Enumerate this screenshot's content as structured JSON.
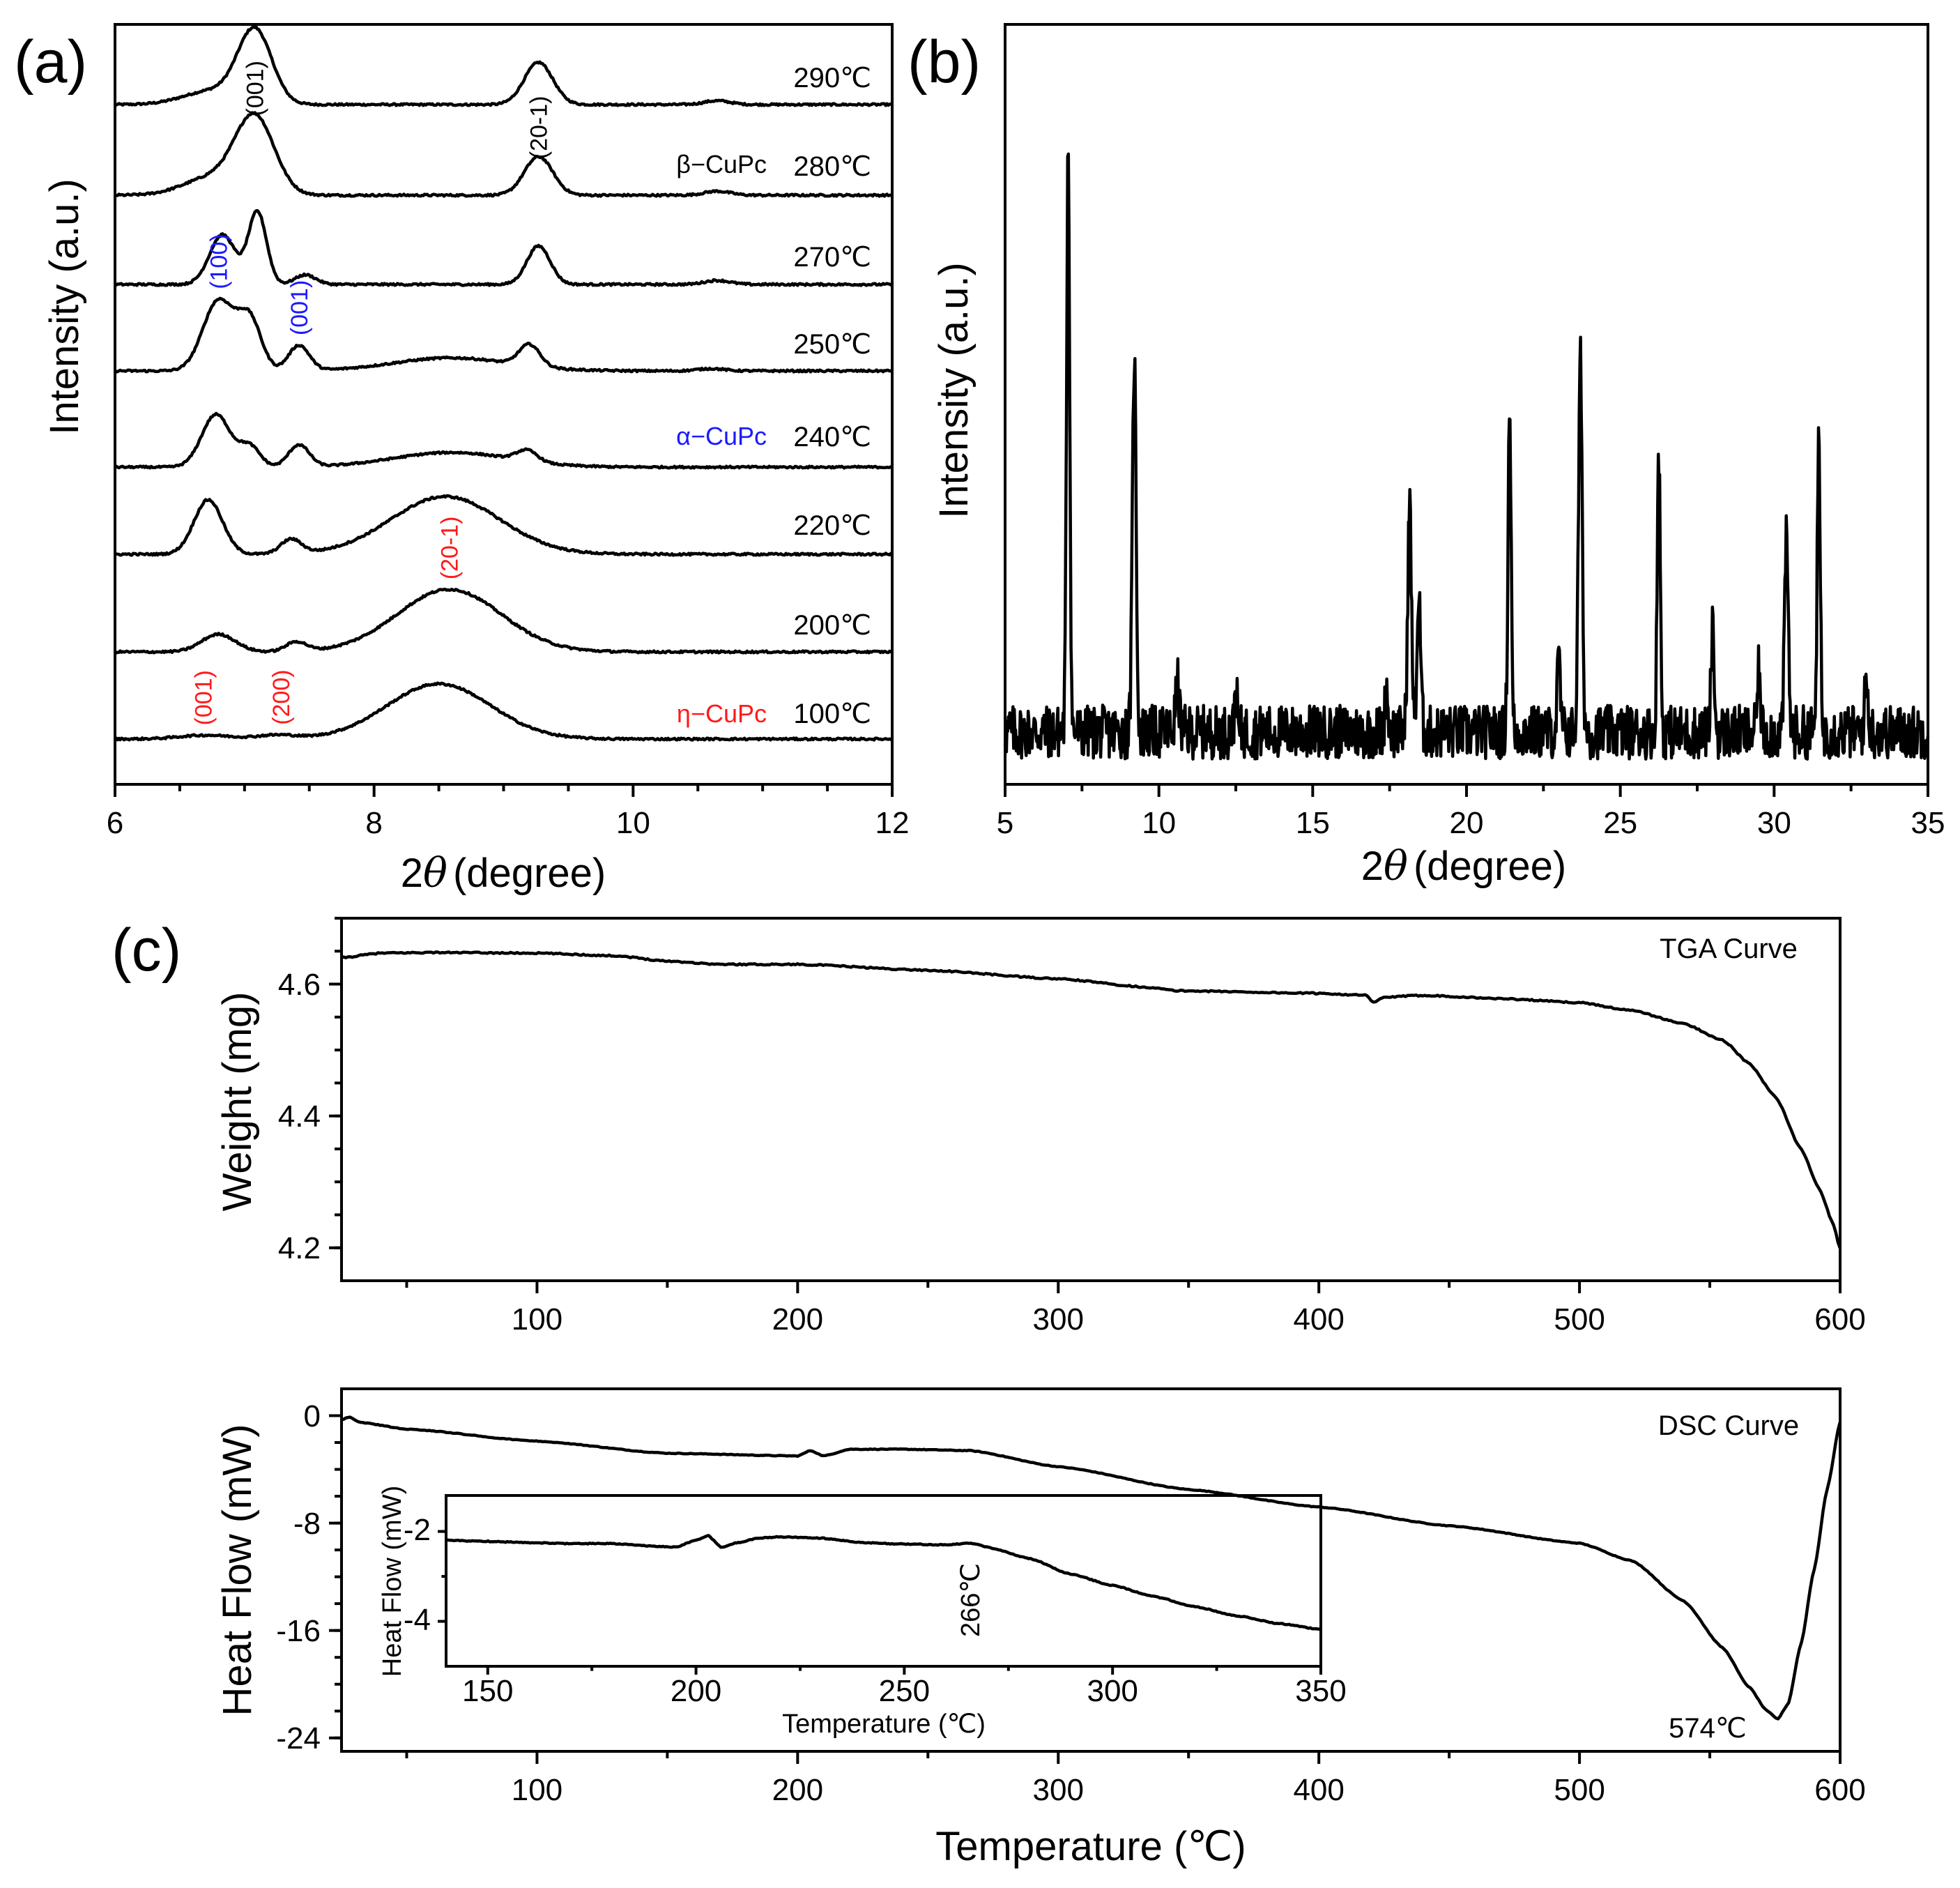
{
  "figure": {
    "panel_labels": [
      "(a)",
      "(b)",
      "(c)"
    ]
  },
  "chart_data": [
    {
      "id": "a",
      "type": "line",
      "title": "",
      "xlabel": "2θ (degree)",
      "xlabel_prefix": "2",
      "xlabel_var": "θ",
      "xlabel_unit": "(degree)",
      "ylabel": "Intensity (a.u.)",
      "xlim": [
        6,
        12
      ],
      "xticks": [
        6,
        8,
        10,
        12
      ],
      "grid": false,
      "offset_stacked": true,
      "series": [
        {
          "name": "290℃",
          "peaks": [
            [
              6.75,
              0.18,
              0.22
            ],
            [
              7.08,
              0.95,
              0.13
            ],
            [
              9.27,
              0.55,
              0.11
            ],
            [
              10.65,
              0.05,
              0.1
            ]
          ],
          "base_slope": 0.0
        },
        {
          "name": "280℃",
          "peaks": [
            [
              6.75,
              0.22,
              0.22
            ],
            [
              7.08,
              0.95,
              0.15
            ],
            [
              9.27,
              0.48,
              0.11
            ],
            [
              10.65,
              0.05,
              0.1
            ]
          ],
          "base_slope": 0.0
        },
        {
          "name": "270℃",
          "peaks": [
            [
              6.83,
              0.62,
              0.1
            ],
            [
              7.1,
              0.9,
              0.07
            ],
            [
              7.47,
              0.12,
              0.08
            ],
            [
              9.27,
              0.48,
              0.09
            ],
            [
              10.65,
              0.05,
              0.1
            ]
          ],
          "base_slope": 0.0
        },
        {
          "name": "250℃",
          "peaks": [
            [
              6.8,
              0.92,
              0.12
            ],
            [
              7.04,
              0.65,
              0.09
            ],
            [
              7.42,
              0.33,
              0.08
            ],
            [
              8.6,
              0.17,
              0.45
            ],
            [
              9.2,
              0.28,
              0.08
            ],
            [
              10.6,
              0.03,
              0.1
            ]
          ],
          "base_slope": 0.0
        },
        {
          "name": "240℃",
          "peaks": [
            [
              6.78,
              0.72,
              0.11
            ],
            [
              7.04,
              0.28,
              0.08
            ],
            [
              7.42,
              0.3,
              0.08
            ],
            [
              8.6,
              0.2,
              0.45
            ],
            [
              9.18,
              0.15,
              0.08
            ]
          ],
          "base_slope": 0.0
        },
        {
          "name": "220℃",
          "peaks": [
            [
              6.72,
              0.68,
              0.11
            ],
            [
              7.36,
              0.18,
              0.08
            ],
            [
              8.55,
              0.72,
              0.42
            ]
          ],
          "base_slope": 0.0
        },
        {
          "name": "200℃",
          "peaks": [
            [
              6.8,
              0.22,
              0.13
            ],
            [
              7.4,
              0.12,
              0.08
            ],
            [
              8.58,
              0.78,
              0.4
            ]
          ],
          "base_slope": 0.0
        },
        {
          "name": "100℃",
          "peaks": [
            [
              6.7,
              0.05,
              0.2
            ],
            [
              7.25,
              0.05,
              0.15
            ],
            [
              8.5,
              0.72,
              0.4
            ]
          ],
          "base_slope": 0.0
        }
      ],
      "annotations": {
        "miller": [
          {
            "label": "(001)",
            "x": 7.08,
            "series": "290℃",
            "color": "#000000"
          },
          {
            "label": "(20-1)",
            "x": 9.27,
            "series": "290℃",
            "color": "#000000"
          },
          {
            "label": "(100)",
            "x": 6.8,
            "series": "250℃",
            "color": "#1a1aff"
          },
          {
            "label": "(001)",
            "x": 7.42,
            "series": "250℃",
            "color": "#1a1aff"
          },
          {
            "label": "(001)",
            "x": 6.68,
            "series": "100℃",
            "color": "#ff1a1a"
          },
          {
            "label": "(200)",
            "x": 7.28,
            "series": "100℃",
            "color": "#ff1a1a"
          },
          {
            "label": "(20-1)",
            "x": 8.58,
            "series": "200℃",
            "color": "#ff1a1a"
          }
        ],
        "phases": [
          {
            "label": "β−CuPc",
            "series": "280℃",
            "color": "#000000"
          },
          {
            "label": "α−CuPc",
            "series": "240℃",
            "color": "#1a1aff"
          },
          {
            "label": "η−CuPc",
            "series": "100℃",
            "color": "#ff1a1a"
          }
        ]
      }
    },
    {
      "id": "b",
      "type": "line",
      "title": "",
      "xlabel": "2θ (degree)",
      "xlabel_prefix": "2",
      "xlabel_var": "θ",
      "xlabel_unit": "(degree)",
      "ylabel": "Intensity (a.u.)",
      "xlim": [
        5,
        35
      ],
      "xticks": [
        5,
        10,
        15,
        20,
        25,
        30,
        35
      ],
      "grid": false,
      "peaks": [
        [
          7.05,
          1.0,
          0.05
        ],
        [
          9.2,
          0.63,
          0.06
        ],
        [
          10.6,
          0.08,
          0.06
        ],
        [
          12.5,
          0.08,
          0.04
        ],
        [
          17.4,
          0.07,
          0.05
        ],
        [
          18.15,
          0.38,
          0.06
        ],
        [
          18.45,
          0.22,
          0.06
        ],
        [
          21.4,
          0.55,
          0.05
        ],
        [
          23.0,
          0.12,
          0.05
        ],
        [
          23.7,
          0.62,
          0.06
        ],
        [
          26.25,
          0.47,
          0.05
        ],
        [
          28.0,
          0.17,
          0.05
        ],
        [
          29.5,
          0.1,
          0.05
        ],
        [
          30.4,
          0.32,
          0.06
        ],
        [
          31.45,
          0.47,
          0.05
        ],
        [
          33.0,
          0.08,
          0.06
        ]
      ]
    },
    {
      "id": "c-tga",
      "type": "line",
      "title": "TGA Curve",
      "xlabel": "",
      "ylabel": "Weight (mg)",
      "xlim": [
        25,
        600
      ],
      "ylim": [
        4.15,
        4.7
      ],
      "xticks": [
        100,
        200,
        300,
        400,
        500,
        600
      ],
      "yticks": [
        4.2,
        4.4,
        4.6
      ],
      "ytick_labels": [
        "4.2",
        "4.4",
        "4.6"
      ],
      "grid": false,
      "x": [
        25,
        40,
        60,
        100,
        130,
        150,
        170,
        200,
        250,
        300,
        335,
        345,
        400,
        418,
        421,
        425,
        440,
        470,
        500,
        520,
        540,
        555,
        565,
        575,
        585,
        592,
        597,
        600
      ],
      "y": [
        4.64,
        4.647,
        4.648,
        4.647,
        4.643,
        4.635,
        4.63,
        4.63,
        4.621,
        4.608,
        4.595,
        4.59,
        4.586,
        4.583,
        4.572,
        4.58,
        4.583,
        4.578,
        4.572,
        4.56,
        4.54,
        4.515,
        4.48,
        4.43,
        4.35,
        4.29,
        4.24,
        4.2
      ]
    },
    {
      "id": "c-dsc",
      "type": "line",
      "title": "DSC Curve",
      "xlabel": "Temperature (℃)",
      "ylabel": "Heat Flow (mW)",
      "xlim": [
        25,
        600
      ],
      "ylim": [
        -25,
        2
      ],
      "xticks": [
        100,
        200,
        300,
        400,
        500,
        600
      ],
      "yticks": [
        0,
        -8,
        -16,
        -24
      ],
      "ytick_labels": [
        "0",
        "-8",
        "-16",
        "-24"
      ],
      "grid": false,
      "annotation": "574℃",
      "x": [
        25,
        28,
        32,
        50,
        100,
        150,
        200,
        205,
        210,
        220,
        240,
        266,
        300,
        350,
        400,
        450,
        500,
        520,
        540,
        555,
        565,
        572,
        576,
        580,
        585,
        590,
        595,
        600
      ],
      "y": [
        -0.3,
        -0.1,
        -0.5,
        -1.0,
        -1.9,
        -2.8,
        -3.0,
        -2.6,
        -3.0,
        -2.5,
        -2.5,
        -2.6,
        -3.8,
        -5.5,
        -6.8,
        -8.2,
        -9.5,
        -10.8,
        -13.8,
        -17.3,
        -20.2,
        -22.0,
        -22.6,
        -21.5,
        -17.0,
        -11.5,
        -5.5,
        -0.5
      ]
    },
    {
      "id": "c-dsc-inset",
      "type": "line",
      "title": "",
      "xlabel": "Temperature (℃)",
      "ylabel": "Heat Flow (mW)",
      "xlim": [
        140,
        350
      ],
      "ylim": [
        -5,
        -1.2
      ],
      "xticks": [
        150,
        200,
        250,
        300,
        350
      ],
      "yticks": [
        -2,
        -4
      ],
      "ytick_labels": [
        "-2",
        "-4"
      ],
      "grid": false,
      "annotation": "266℃",
      "annotation_x": 266,
      "x": [
        140,
        150,
        160,
        170,
        180,
        190,
        195,
        200,
        203,
        206,
        210,
        215,
        220,
        230,
        240,
        250,
        260,
        266,
        270,
        280,
        290,
        300,
        310,
        320,
        330,
        340,
        350
      ],
      "y": [
        -2.2,
        -2.22,
        -2.25,
        -2.27,
        -2.27,
        -2.33,
        -2.35,
        -2.2,
        -2.1,
        -2.35,
        -2.25,
        -2.15,
        -2.12,
        -2.15,
        -2.25,
        -2.28,
        -2.3,
        -2.26,
        -2.35,
        -2.6,
        -2.95,
        -3.2,
        -3.45,
        -3.68,
        -3.88,
        -4.05,
        -4.18
      ]
    }
  ]
}
